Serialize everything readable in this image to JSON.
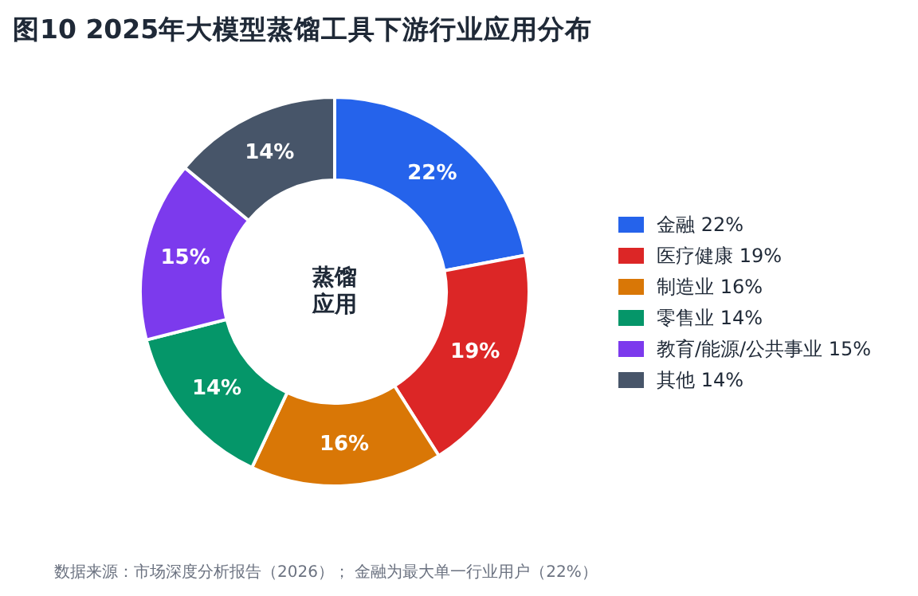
{
  "chart_data": {
    "type": "donut",
    "title": "图10  2025年大模型蒸馏工具下游行业应用分布",
    "categories": [
      "金融",
      "医疗健康",
      "制造业",
      "零售业",
      "教育/能源/公共事业",
      "其他"
    ],
    "values": [
      22,
      19,
      16,
      14,
      15,
      14
    ],
    "value_labels": [
      "22%",
      "19%",
      "16%",
      "14%",
      "15%",
      "14%"
    ],
    "colors": [
      "#2563eb",
      "#dc2626",
      "#d97706",
      "#059669",
      "#7c3aed",
      "#475569"
    ],
    "legend": "right",
    "annotations": [
      "蒸馏应用",
      "数据来源：市场深度分析报告（2026）； 金融为最大单一行业用户（22%）"
    ]
  }
}
